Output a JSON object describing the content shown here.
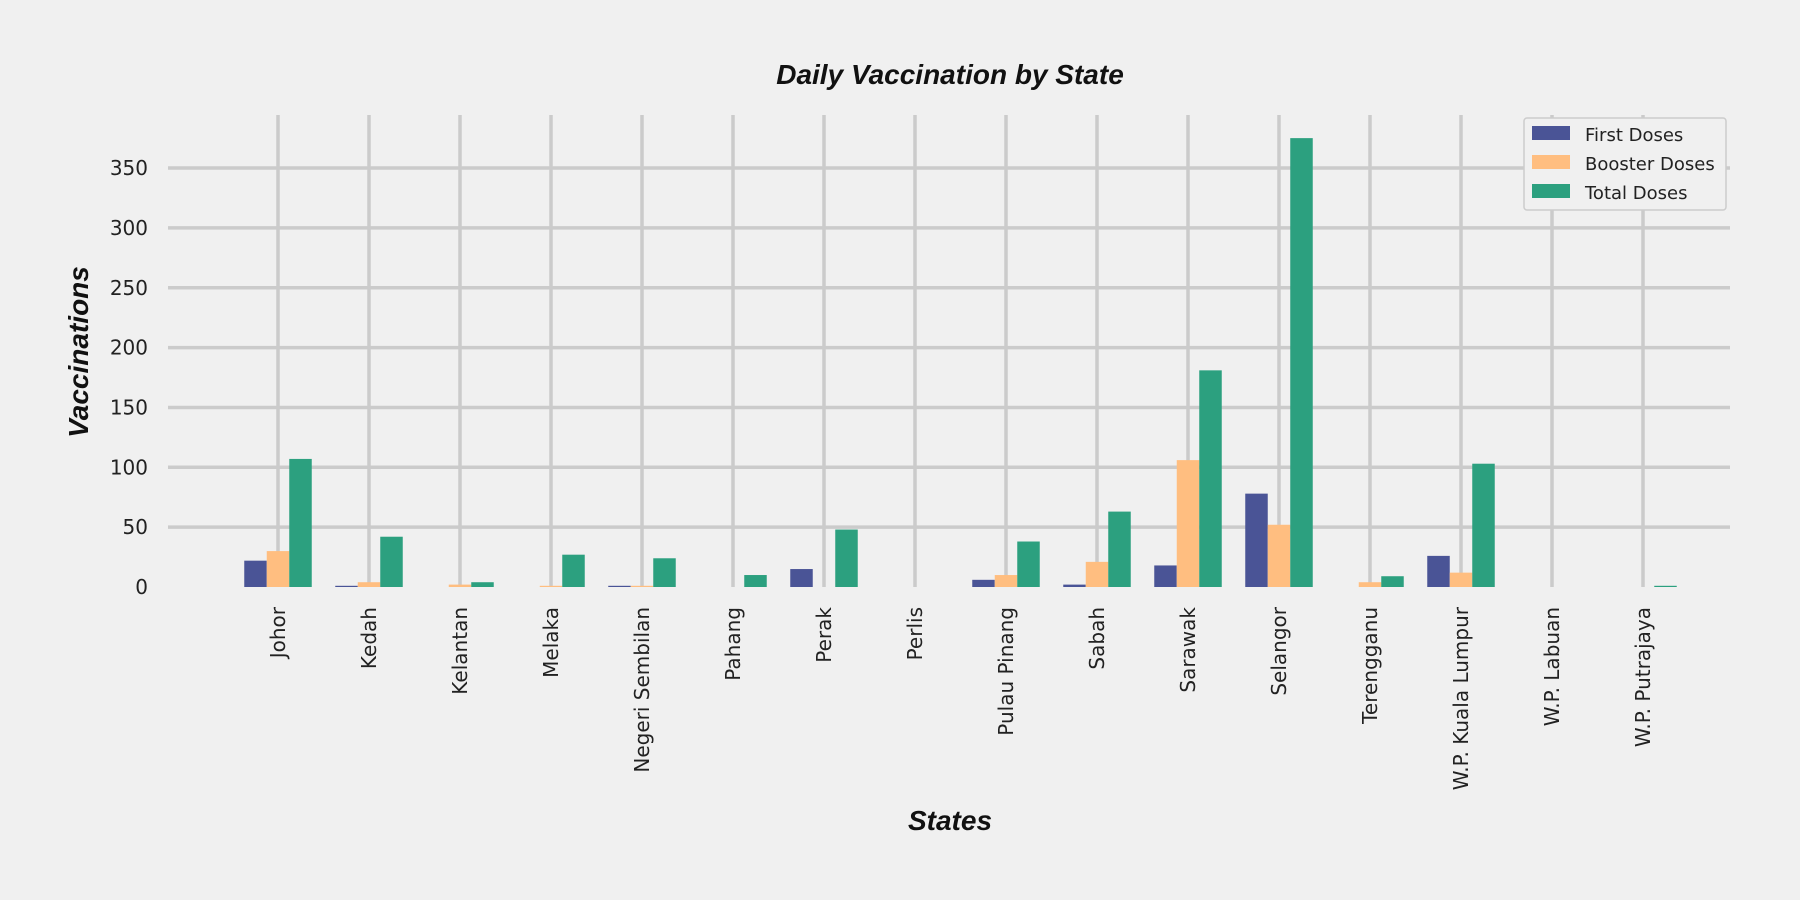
{
  "chart_data": {
    "type": "bar",
    "title": "Daily Vaccination by State",
    "xlabel": "States",
    "ylabel": "Vaccinations",
    "categories": [
      "Johor",
      "Kedah",
      "Kelantan",
      "Melaka",
      "Negeri Sembilan",
      "Pahang",
      "Perak",
      "Perlis",
      "Pulau Pinang",
      "Sabah",
      "Sarawak",
      "Selangor",
      "Terengganu",
      "W.P. Kuala Lumpur",
      "W.P. Labuan",
      "W.P. Putrajaya"
    ],
    "series": [
      {
        "name": "First Doses",
        "color": "#4a5496",
        "values": [
          22,
          1,
          0,
          0,
          1,
          0,
          15,
          0,
          6,
          2,
          18,
          78,
          0,
          26,
          0,
          0
        ]
      },
      {
        "name": "Booster Doses",
        "color": "#ffbe80",
        "values": [
          30,
          4,
          2,
          1,
          1,
          0,
          0,
          0,
          10,
          21,
          106,
          52,
          4,
          12,
          0,
          0
        ]
      },
      {
        "name": "Total Doses",
        "color": "#2ca07f",
        "values": [
          107,
          42,
          4,
          27,
          24,
          10,
          48,
          0,
          38,
          63,
          181,
          375,
          9,
          103,
          0,
          1
        ]
      }
    ],
    "yticks": [
      0,
      50,
      100,
      150,
      200,
      250,
      300,
      350
    ],
    "ylim": [
      0,
      385
    ],
    "grid": true,
    "legend": "top-right"
  }
}
